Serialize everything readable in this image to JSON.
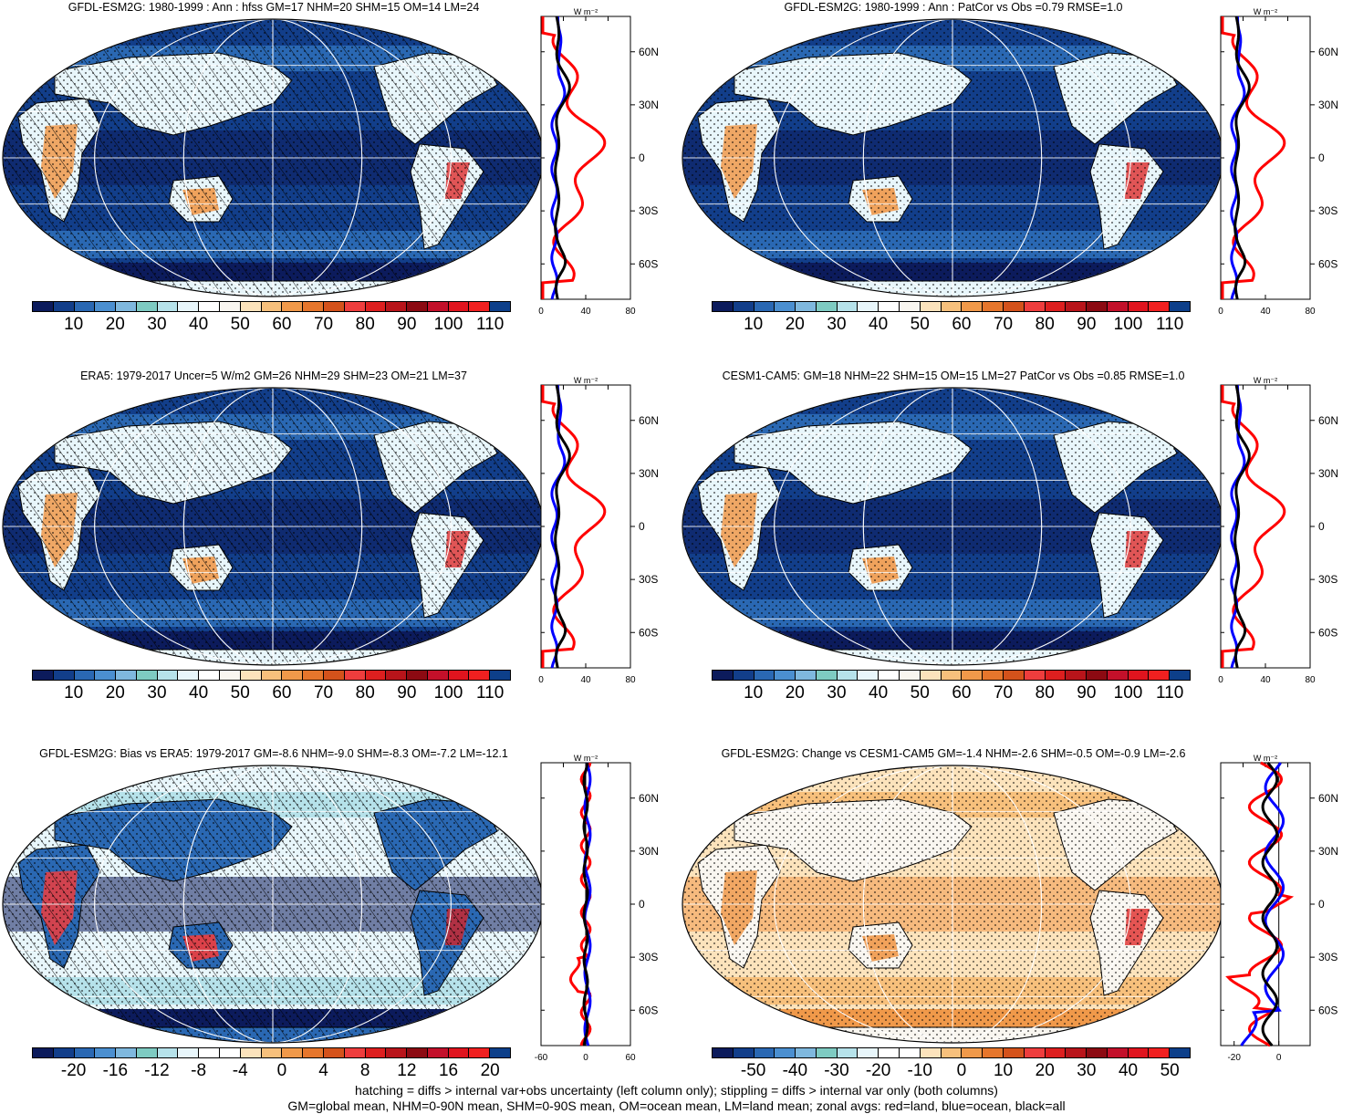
{
  "panels": [
    {
      "id": "p1",
      "title": "GFDL-ESM2G: 1980-1999 : Ann : hfss GM=17 NHM=20 SHM=15 OM=14 LM=24",
      "mode": "clim",
      "hatch": true,
      "zonal": {
        "xlabels": [
          "0",
          "40",
          "80"
        ],
        "unit": "W m⁻²"
      },
      "cbar_labels": [
        "10",
        "20",
        "30",
        "40",
        "50",
        "60",
        "70",
        "80",
        "90",
        "100",
        "110"
      ],
      "cbar": "clim"
    },
    {
      "id": "p2",
      "title": "GFDL-ESM2G: 1980-1999 : Ann : PatCor vs Obs =0.79 RMSE=1.0",
      "mode": "clim",
      "hatch": false,
      "zonal": {
        "xlabels": [
          "0",
          "40",
          "80"
        ],
        "unit": "W m⁻²"
      },
      "cbar_labels": [
        "10",
        "20",
        "30",
        "40",
        "50",
        "60",
        "70",
        "80",
        "90",
        "100",
        "110"
      ],
      "cbar": "clim"
    },
    {
      "id": "p3",
      "title": "ERA5: 1979-2017 Uncer=5 W/m2 GM=26 NHM=29 SHM=23 OM=21 LM=37",
      "mode": "clim",
      "hatch": true,
      "zonal": {
        "xlabels": [
          "0",
          "40",
          "80"
        ],
        "unit": "W m⁻²"
      },
      "cbar_labels": [
        "10",
        "20",
        "30",
        "40",
        "50",
        "60",
        "70",
        "80",
        "90",
        "100",
        "110"
      ],
      "cbar": "clim"
    },
    {
      "id": "p4",
      "title": "CESM1-CAM5: GM=18 NHM=22 SHM=15 OM=15 LM=27 PatCor vs Obs =0.85 RMSE=1.0",
      "mode": "clim",
      "hatch": false,
      "zonal": {
        "xlabels": [
          "0",
          "40",
          "80"
        ],
        "unit": "W m⁻²"
      },
      "cbar_labels": [
        "10",
        "20",
        "30",
        "40",
        "50",
        "60",
        "70",
        "80",
        "90",
        "100",
        "110"
      ],
      "cbar": "clim"
    },
    {
      "id": "p5",
      "title": "GFDL-ESM2G: Bias vs ERA5: 1979-2017 GM=-8.6 NHM=-9.0 SHM=-8.3 OM=-7.2 LM=-12.1",
      "mode": "bias",
      "hatch": true,
      "zonal": {
        "xlabels": [
          "-60",
          "0",
          "60"
        ],
        "unit": "W m⁻²"
      },
      "cbar_labels": [
        "-20",
        "-16",
        "-12",
        "-8",
        "-4",
        "0",
        "4",
        "8",
        "12",
        "16",
        "20"
      ],
      "cbar": "diff"
    },
    {
      "id": "p6",
      "title": "GFDL-ESM2G: Change vs CESM1-CAM5 GM=-1.4 NHM=-2.6 SHM=-0.5 OM=-0.9 LM=-2.6",
      "mode": "change",
      "hatch": false,
      "zonal": {
        "xlabels": [
          "-20",
          "0"
        ],
        "unit": "W m⁻²"
      },
      "cbar_labels": [
        "-50",
        "-40",
        "-30",
        "-20",
        "-10",
        "0",
        "10",
        "20",
        "30",
        "40",
        "50"
      ],
      "cbar": "diff"
    }
  ],
  "lat_labels": [
    "60N",
    "30N",
    "0",
    "30S",
    "60S"
  ],
  "colors": {
    "clim": [
      "#0c1b5c",
      "#123e8a",
      "#2a68b3",
      "#4b8fd0",
      "#7fb8de",
      "#7ecbc2",
      "#b6e2ea",
      "#e8f6fb",
      "#ffffff",
      "#f9f6f0",
      "#fce3bc",
      "#f7c07c",
      "#f0994a",
      "#e6762c",
      "#d4521b",
      "#ee3d3d",
      "#dd1f1f",
      "#b8141a",
      "#8c0a12",
      "#c3102a",
      "#e0141e",
      "#f02020",
      "#0d3f8a"
    ],
    "diff": [
      "#0c1b5c",
      "#123e8a",
      "#2a68b3",
      "#4b8fd0",
      "#7fb8de",
      "#7ecbc2",
      "#b6e2ea",
      "#e8f6fb",
      "#ffffff",
      "#ffffff",
      "#fce3bc",
      "#f7c07c",
      "#f0994a",
      "#e6762c",
      "#d4521b",
      "#ee3d3d",
      "#dd1f1f",
      "#b8141a",
      "#8c0a12",
      "#c3102a",
      "#e0141e",
      "#f02020",
      "#0d3f8a"
    ],
    "land_line": "#ff0000",
    "ocean_line": "#0000ff",
    "all_line": "#000000"
  },
  "footer": [
    "hatching = diffs > internal var+obs uncertainty (left column only); stippling = diffs > internal var only (both columns)",
    "GM=global mean, NHM=0-90N mean, SHM=0-90S mean, OM=ocean mean, LM=land mean; zonal avgs: red=land, blue=ocean, black=all"
  ]
}
